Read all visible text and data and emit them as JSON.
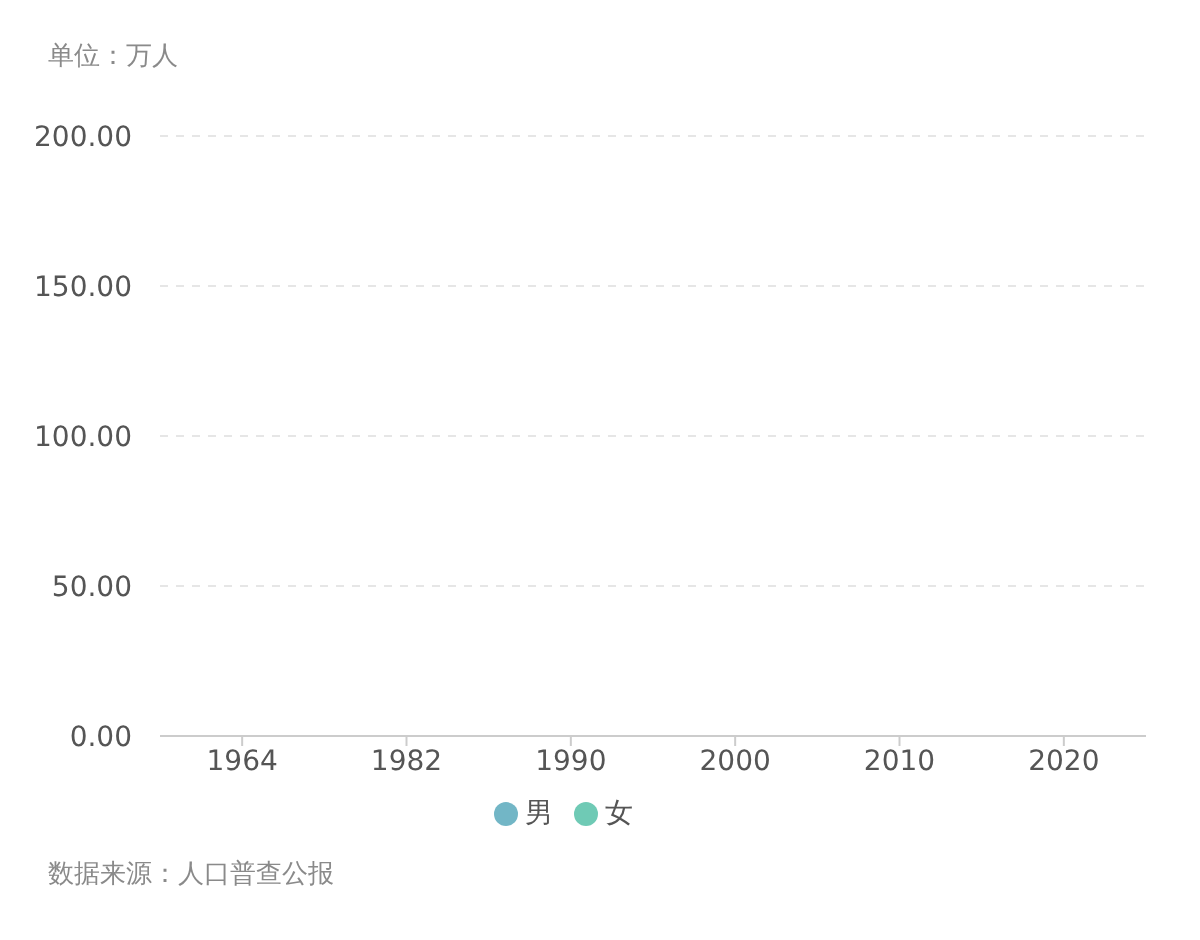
{
  "chart_data": {
    "type": "bar",
    "ylabel": "单位：万人",
    "categories": [
      "1964",
      "1982",
      "1990",
      "2000",
      "2010",
      "2020"
    ],
    "series": [
      {
        "name": "男",
        "color": "#72b6c6",
        "values": [
          null,
          null,
          null,
          null,
          null,
          null
        ]
      },
      {
        "name": "女",
        "color": "#6fcab5",
        "values": [
          null,
          null,
          null,
          null,
          null,
          null
        ]
      }
    ],
    "ylim": [
      0,
      200
    ],
    "yticks": [
      {
        "value": 0,
        "label": "0.00"
      },
      {
        "value": 50,
        "label": "50.00"
      },
      {
        "value": 100,
        "label": "100.00"
      },
      {
        "value": 150,
        "label": "150.00"
      },
      {
        "value": 200,
        "label": "200.00"
      }
    ],
    "grid": "y",
    "legend": "bottom",
    "annotations": [
      "数据来源：人口普查公报"
    ]
  }
}
